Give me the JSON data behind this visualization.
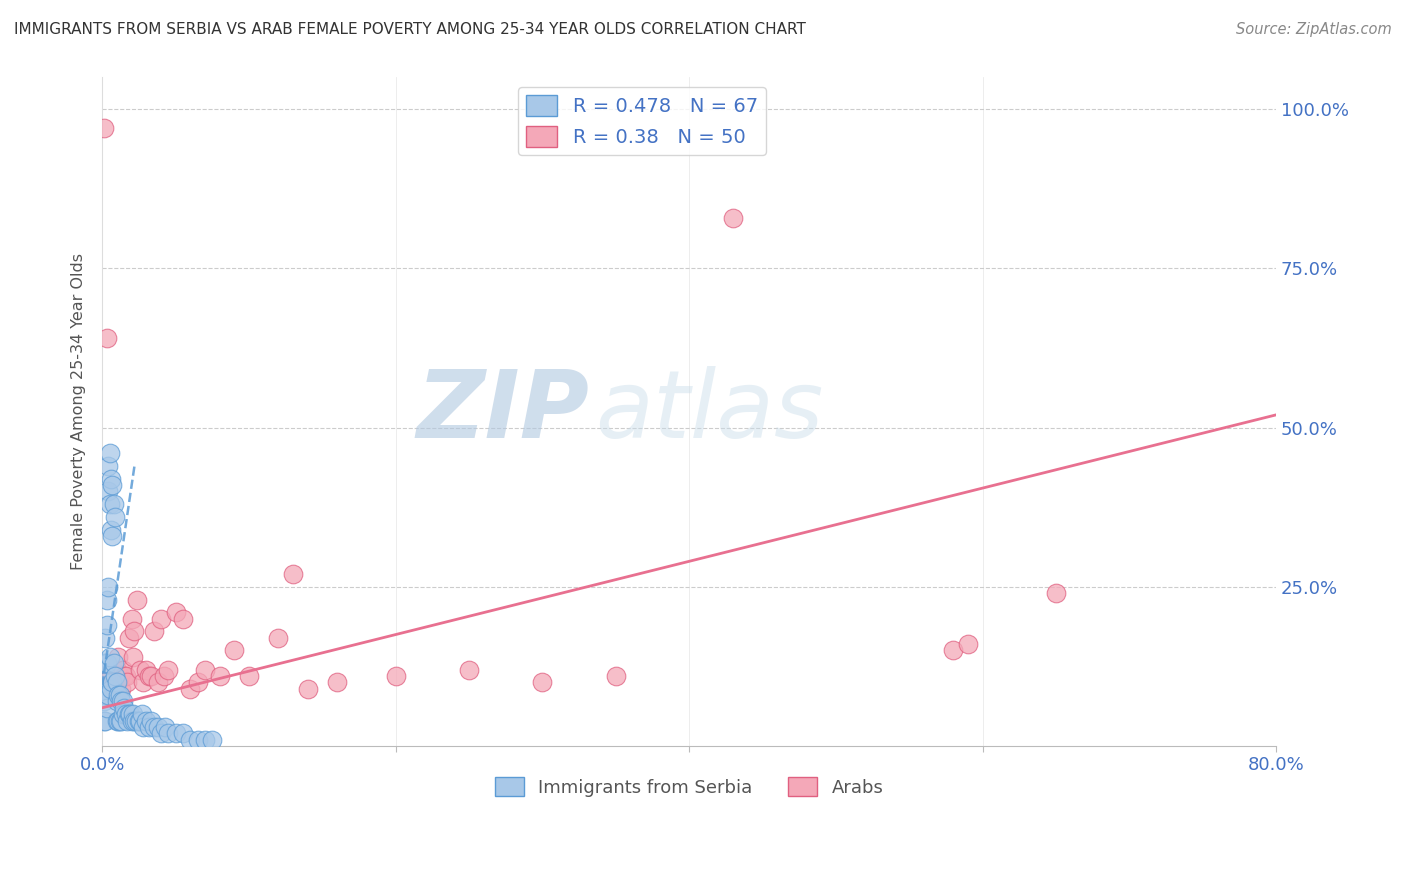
{
  "title": "IMMIGRANTS FROM SERBIA VS ARAB FEMALE POVERTY AMONG 25-34 YEAR OLDS CORRELATION CHART",
  "source": "Source: ZipAtlas.com",
  "ylabel": "Female Poverty Among 25-34 Year Olds",
  "xlim": [
    0.0,
    0.8
  ],
  "ylim": [
    0.0,
    1.05
  ],
  "serbia_R": 0.478,
  "serbia_N": 67,
  "arab_R": 0.38,
  "arab_N": 50,
  "serbia_color": "#a8c8e8",
  "arab_color": "#f4a8b8",
  "serbia_edge_color": "#5b9bd5",
  "arab_edge_color": "#e06080",
  "serbia_trend_color": "#5b9bd5",
  "arab_trend_color": "#e87090",
  "legend_label_serbia": "Immigrants from Serbia",
  "legend_label_arab": "Arabs",
  "background_color": "#ffffff",
  "grid_color": "#cccccc",
  "axis_tick_color": "#4472c4",
  "serbia_x": [
    0.001,
    0.001,
    0.001,
    0.001,
    0.002,
    0.002,
    0.002,
    0.002,
    0.003,
    0.003,
    0.003,
    0.003,
    0.004,
    0.004,
    0.004,
    0.004,
    0.005,
    0.005,
    0.005,
    0.006,
    0.006,
    0.006,
    0.007,
    0.007,
    0.007,
    0.008,
    0.008,
    0.009,
    0.009,
    0.01,
    0.01,
    0.01,
    0.011,
    0.011,
    0.012,
    0.012,
    0.013,
    0.013,
    0.014,
    0.014,
    0.015,
    0.016,
    0.017,
    0.018,
    0.019,
    0.02,
    0.021,
    0.022,
    0.023,
    0.025,
    0.026,
    0.027,
    0.028,
    0.03,
    0.032,
    0.033,
    0.035,
    0.038,
    0.04,
    0.043,
    0.045,
    0.05,
    0.055,
    0.06,
    0.065,
    0.07,
    0.075
  ],
  "serbia_y": [
    0.13,
    0.1,
    0.07,
    0.04,
    0.17,
    0.13,
    0.08,
    0.04,
    0.23,
    0.19,
    0.13,
    0.06,
    0.44,
    0.4,
    0.25,
    0.08,
    0.46,
    0.38,
    0.14,
    0.42,
    0.34,
    0.09,
    0.41,
    0.33,
    0.1,
    0.38,
    0.13,
    0.36,
    0.11,
    0.1,
    0.07,
    0.04,
    0.08,
    0.04,
    0.08,
    0.04,
    0.07,
    0.04,
    0.07,
    0.05,
    0.06,
    0.05,
    0.04,
    0.05,
    0.05,
    0.04,
    0.05,
    0.04,
    0.04,
    0.04,
    0.04,
    0.05,
    0.03,
    0.04,
    0.03,
    0.04,
    0.03,
    0.03,
    0.02,
    0.03,
    0.02,
    0.02,
    0.02,
    0.01,
    0.01,
    0.01,
    0.01
  ],
  "arab_x": [
    0.001,
    0.003,
    0.005,
    0.006,
    0.007,
    0.008,
    0.009,
    0.01,
    0.011,
    0.012,
    0.013,
    0.014,
    0.015,
    0.016,
    0.017,
    0.018,
    0.02,
    0.021,
    0.022,
    0.024,
    0.026,
    0.028,
    0.03,
    0.032,
    0.033,
    0.035,
    0.038,
    0.04,
    0.042,
    0.045,
    0.05,
    0.055,
    0.06,
    0.065,
    0.07,
    0.08,
    0.09,
    0.1,
    0.12,
    0.13,
    0.14,
    0.16,
    0.2,
    0.25,
    0.3,
    0.35,
    0.43,
    0.58,
    0.59,
    0.65
  ],
  "arab_y": [
    0.97,
    0.64,
    0.12,
    0.11,
    0.1,
    0.1,
    0.09,
    0.12,
    0.14,
    0.11,
    0.09,
    0.12,
    0.11,
    0.11,
    0.1,
    0.17,
    0.2,
    0.14,
    0.18,
    0.23,
    0.12,
    0.1,
    0.12,
    0.11,
    0.11,
    0.18,
    0.1,
    0.2,
    0.11,
    0.12,
    0.21,
    0.2,
    0.09,
    0.1,
    0.12,
    0.11,
    0.15,
    0.11,
    0.17,
    0.27,
    0.09,
    0.1,
    0.11,
    0.12,
    0.1,
    0.11,
    0.83,
    0.15,
    0.16,
    0.24
  ],
  "serbia_trend_x": [
    0.0,
    0.022
  ],
  "serbia_trend_y": [
    0.095,
    0.44
  ],
  "arab_trend_x": [
    0.0,
    0.8
  ],
  "arab_trend_y": [
    0.06,
    0.52
  ]
}
